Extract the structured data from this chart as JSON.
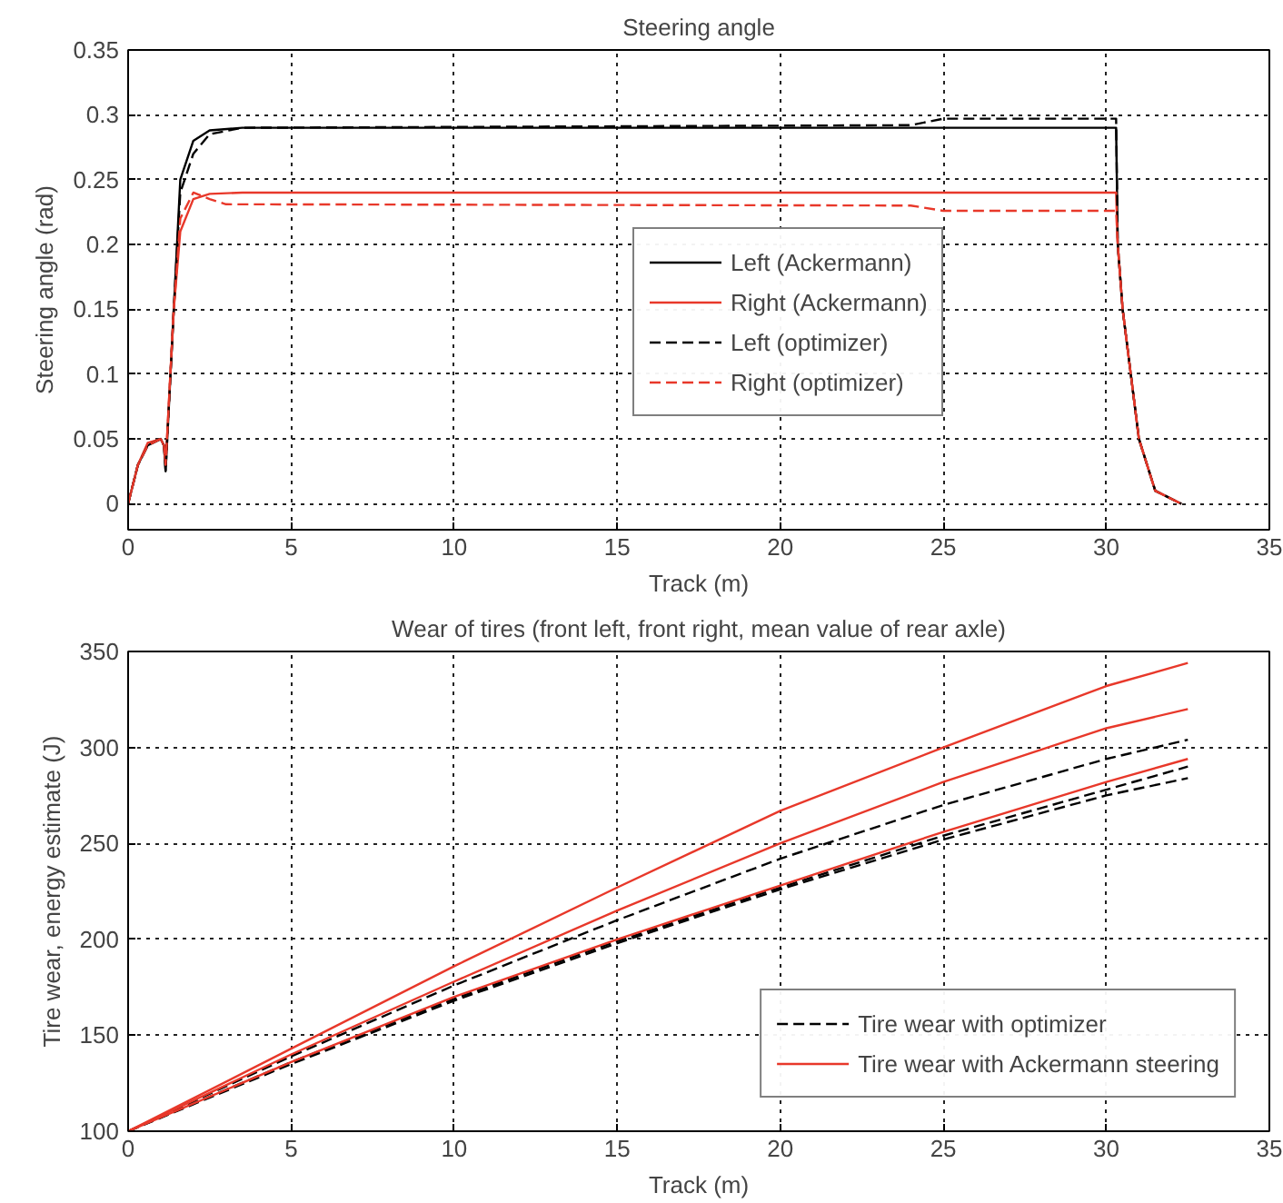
{
  "chart_data": [
    {
      "type": "line",
      "title": "Steering angle",
      "xlabel": "Track (m)",
      "ylabel": "Steering angle (rad)",
      "xlim": [
        0,
        35
      ],
      "xticks": [
        0,
        5,
        10,
        15,
        20,
        25,
        30,
        35
      ],
      "ylim": [
        -0.02,
        0.35
      ],
      "yticks": [
        0,
        0.05,
        0.1,
        0.15,
        0.2,
        0.25,
        0.3,
        0.35
      ],
      "grid": true,
      "legend": "right",
      "series": [
        {
          "name": "Left (Ackermann)",
          "color": "#000000",
          "line_style": "solid",
          "x": [
            0,
            0.3,
            0.6,
            1.0,
            1.1,
            1.15,
            1.4,
            1.6,
            2.0,
            2.5,
            3.5,
            30.3,
            30.35,
            30.5,
            31.0,
            31.5,
            32.3
          ],
          "values": [
            0,
            0.03,
            0.045,
            0.05,
            0.045,
            0.025,
            0.15,
            0.25,
            0.28,
            0.288,
            0.29,
            0.29,
            0.2,
            0.15,
            0.05,
            0.01,
            0
          ]
        },
        {
          "name": "Right (Ackermann)",
          "color": "#e8382a",
          "line_style": "solid",
          "x": [
            0,
            0.3,
            0.6,
            1.0,
            1.1,
            1.15,
            1.4,
            1.6,
            2.0,
            2.5,
            3.5,
            30.3,
            30.35,
            30.5,
            31.0,
            31.5,
            32.3
          ],
          "values": [
            0,
            0.03,
            0.047,
            0.05,
            0.045,
            0.03,
            0.15,
            0.21,
            0.235,
            0.239,
            0.24,
            0.24,
            0.2,
            0.15,
            0.05,
            0.01,
            0
          ]
        },
        {
          "name": "Left (optimizer)",
          "color": "#000000",
          "line_style": "dashed",
          "x": [
            0,
            0.3,
            0.6,
            1.0,
            1.1,
            1.15,
            1.4,
            1.6,
            2.0,
            2.5,
            3.5,
            24,
            25,
            30.3,
            30.35,
            30.5,
            31.0,
            31.5,
            32.3
          ],
          "values": [
            0,
            0.03,
            0.045,
            0.05,
            0.045,
            0.025,
            0.15,
            0.24,
            0.27,
            0.285,
            0.29,
            0.292,
            0.297,
            0.297,
            0.2,
            0.15,
            0.05,
            0.01,
            0
          ]
        },
        {
          "name": "Right (optimizer)",
          "color": "#e8382a",
          "line_style": "dashed",
          "x": [
            0,
            0.3,
            0.6,
            1.0,
            1.1,
            1.15,
            1.4,
            1.6,
            2.0,
            2.5,
            3.0,
            24,
            25,
            30.3,
            30.35,
            30.5,
            31.0,
            31.5,
            32.3
          ],
          "values": [
            0,
            0.03,
            0.045,
            0.05,
            0.045,
            0.03,
            0.15,
            0.22,
            0.24,
            0.235,
            0.231,
            0.23,
            0.226,
            0.226,
            0.2,
            0.15,
            0.05,
            0.01,
            0
          ]
        }
      ]
    },
    {
      "type": "line",
      "title": "Wear of tires (front left, front right, mean value of rear axle)",
      "xlabel": "Track (m)",
      "ylabel": "Tire wear, energy estimate (J)",
      "xlim": [
        0,
        35
      ],
      "xticks": [
        0,
        5,
        10,
        15,
        20,
        25,
        30,
        35
      ],
      "ylim": [
        100,
        350
      ],
      "yticks": [
        100,
        150,
        200,
        250,
        300,
        350
      ],
      "grid": true,
      "legend": "bottom right",
      "series": [
        {
          "name": "Tire wear with optimizer",
          "color": "#000000",
          "line_style": "dashed",
          "x": [
            0,
            5,
            10,
            15,
            20,
            25,
            30,
            32.5
          ],
          "values": [
            100,
            139,
            176,
            210,
            242,
            270,
            294,
            304
          ]
        },
        {
          "color": "#000000",
          "line_style": "dashed",
          "x": [
            0,
            5,
            10,
            15,
            20,
            25,
            30,
            32.5
          ],
          "values": [
            100,
            136,
            169,
            199,
            227,
            254,
            278,
            290
          ]
        },
        {
          "color": "#000000",
          "line_style": "dashed",
          "x": [
            0,
            5,
            10,
            15,
            20,
            25,
            30,
            32.5
          ],
          "values": [
            100,
            135,
            168,
            198,
            226,
            252,
            275,
            284
          ]
        },
        {
          "name": "Tire wear with Ackermann steering",
          "color": "#e8382a",
          "line_style": "solid",
          "x": [
            0,
            5,
            10,
            15,
            20,
            25,
            30,
            32.5
          ],
          "values": [
            100,
            143,
            186,
            227,
            267,
            300,
            332,
            344
          ]
        },
        {
          "color": "#e8382a",
          "line_style": "solid",
          "x": [
            0,
            5,
            10,
            15,
            20,
            25,
            30,
            32.5
          ],
          "values": [
            100,
            140,
            178,
            215,
            250,
            282,
            310,
            320
          ]
        },
        {
          "color": "#e8382a",
          "line_style": "solid",
          "x": [
            0,
            5,
            10,
            15,
            20,
            25,
            30,
            32.5
          ],
          "values": [
            100,
            136,
            170,
            200,
            228,
            256,
            282,
            294
          ]
        }
      ]
    }
  ]
}
